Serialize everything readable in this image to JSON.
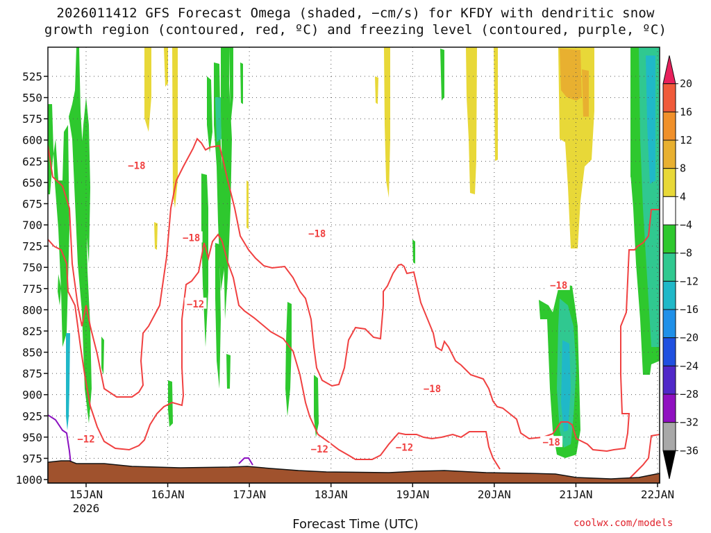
{
  "title_line1": "2026011412 GFS Forecast Omega (shaded, −cm/s) for KFDY with dendritic snow",
  "title_line2": "growth region (contoured, red, ºC) and freezing level (contoured, purple, ºC)",
  "x_axis_label": "Forecast Time (UTC)",
  "credit": "coolwx.com/models",
  "chart_data": {
    "type": "heatmap",
    "title": "2026011412 GFS Forecast Omega (shaded, −cm/s) for KFDY with dendritic snow growth region (contoured, red, ºC) and freezing level (contoured, purple, ºC)",
    "xlabel": "Forecast Time (UTC)",
    "ylabel": "",
    "x_ticks": [
      {
        "label": "15JAN",
        "sub": "2026",
        "day": 15
      },
      {
        "label": "16JAN",
        "day": 16
      },
      {
        "label": "17JAN",
        "day": 17
      },
      {
        "label": "18JAN",
        "day": 18
      },
      {
        "label": "19JAN",
        "day": 19
      },
      {
        "label": "20JAN",
        "day": 20
      },
      {
        "label": "21JAN",
        "day": 21
      },
      {
        "label": "22JAN",
        "day": 22
      }
    ],
    "xlim": [
      14.5,
      22.0
    ],
    "y_ticks": [
      "525",
      "550",
      "575",
      "600",
      "625",
      "650",
      "675",
      "700",
      "725",
      "750",
      "775",
      "800",
      "825",
      "850",
      "875",
      "900",
      "925",
      "950",
      "975",
      "1000"
    ],
    "ylim": [
      1000,
      500
    ],
    "grid": true,
    "colorbar": {
      "labels": [
        "20",
        "16",
        "12",
        "8",
        "4",
        "−4",
        "−8",
        "−12",
        "−16",
        "−20",
        "−24",
        "−28",
        "−32",
        "−36"
      ],
      "colors": [
        "#e8205c",
        "#f05a3a",
        "#f0902a",
        "#e8b030",
        "#e8d838",
        "#ffffff",
        "#2ec82e",
        "#30c890",
        "#20b8c8",
        "#2090e8",
        "#2050e0",
        "#5028c8",
        "#9010c0",
        "#a8a8a8",
        "#000000"
      ]
    },
    "contour_labels": [
      {
        "text": "−18",
        "day": 15.62,
        "p": 630
      },
      {
        "text": "−18",
        "day": 16.29,
        "p": 715
      },
      {
        "text": "−12",
        "day": 16.34,
        "p": 793
      },
      {
        "text": "−18",
        "day": 17.83,
        "p": 710
      },
      {
        "text": "−18",
        "day": 19.24,
        "p": 893
      },
      {
        "text": "−18",
        "day": 20.79,
        "p": 771
      },
      {
        "text": "−18",
        "day": 20.7,
        "p": 956
      },
      {
        "text": "−12",
        "day": 15.0,
        "p": 952
      },
      {
        "text": "−12",
        "day": 17.86,
        "p": 964
      },
      {
        "text": "−12",
        "day": 18.9,
        "p": 962
      }
    ]
  }
}
